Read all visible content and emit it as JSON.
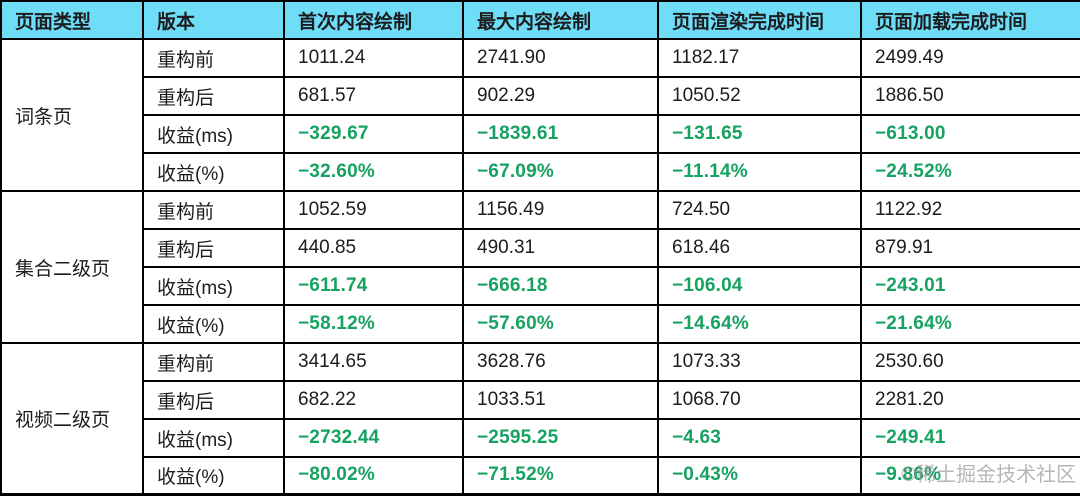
{
  "colors": {
    "header_bg": "#6edef8",
    "gain_green": "#16a261",
    "border": "#000000",
    "text": "#1c1c1e",
    "watermark_gray": "#9b9b9b"
  },
  "watermark": {
    "text": "©稀土掘金技术社区"
  },
  "chart_data": {
    "type": "table",
    "columns": [
      "页面类型",
      "版本",
      "首次内容绘制",
      "最大内容绘制",
      "页面渲染完成时间",
      "页面加载完成时间"
    ],
    "groups": [
      {
        "page_type": "词条页",
        "rows": [
          {
            "version": "重构前",
            "gain": false,
            "values": [
              "1011.24",
              "2741.90",
              "1182.17",
              "2499.49"
            ]
          },
          {
            "version": "重构后",
            "gain": false,
            "values": [
              "681.57",
              "902.29",
              "1050.52",
              "1886.50"
            ]
          },
          {
            "version": "收益(ms)",
            "gain": true,
            "values": [
              "−329.67",
              "−1839.61",
              "−131.65",
              "−613.00"
            ]
          },
          {
            "version": "收益(%)",
            "gain": true,
            "values": [
              "−32.60%",
              "−67.09%",
              "−11.14%",
              "−24.52%"
            ]
          }
        ]
      },
      {
        "page_type": "集合二级页",
        "rows": [
          {
            "version": "重构前",
            "gain": false,
            "values": [
              "1052.59",
              "1156.49",
              "724.50",
              "1122.92"
            ]
          },
          {
            "version": "重构后",
            "gain": false,
            "values": [
              "440.85",
              "490.31",
              "618.46",
              "879.91"
            ]
          },
          {
            "version": "收益(ms)",
            "gain": true,
            "values": [
              "−611.74",
              "−666.18",
              "−106.04",
              "−243.01"
            ]
          },
          {
            "version": "收益(%)",
            "gain": true,
            "values": [
              "−58.12%",
              "−57.60%",
              "−14.64%",
              "−21.64%"
            ]
          }
        ]
      },
      {
        "page_type": "视频二级页",
        "rows": [
          {
            "version": "重构前",
            "gain": false,
            "values": [
              "3414.65",
              "3628.76",
              "1073.33",
              "2530.60"
            ]
          },
          {
            "version": "重构后",
            "gain": false,
            "values": [
              "682.22",
              "1033.51",
              "1068.70",
              "2281.20"
            ]
          },
          {
            "version": "收益(ms)",
            "gain": true,
            "values": [
              "−2732.44",
              "−2595.25",
              "−4.63",
              "−249.41"
            ]
          },
          {
            "version": "收益(%)",
            "gain": true,
            "values": [
              "−80.02%",
              "−71.52%",
              "−0.43%",
              "−9.86%"
            ]
          }
        ]
      }
    ]
  }
}
